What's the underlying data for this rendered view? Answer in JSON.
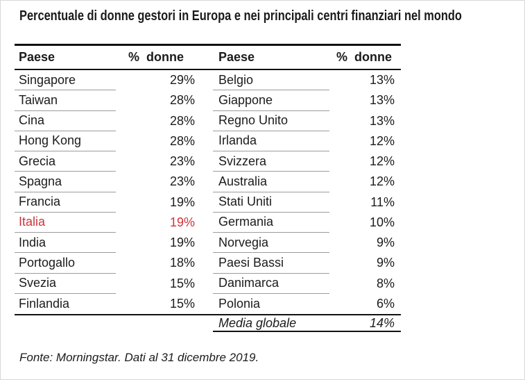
{
  "chart_data": {
    "type": "table",
    "title": "Percentuale di donne gestori in Europa e nei principali centri finanziari nel mondo",
    "columns": [
      "Paese",
      "% donne"
    ],
    "rows": [
      [
        "Singapore",
        29
      ],
      [
        "Taiwan",
        28
      ],
      [
        "Cina",
        28
      ],
      [
        "Hong Kong",
        28
      ],
      [
        "Grecia",
        23
      ],
      [
        "Spagna",
        23
      ],
      [
        "Francia",
        19
      ],
      [
        "Italia",
        19
      ],
      [
        "India",
        19
      ],
      [
        "Portogallo",
        18
      ],
      [
        "Svezia",
        15
      ],
      [
        "Finlandia",
        15
      ],
      [
        "Belgio",
        13
      ],
      [
        "Giappone",
        13
      ],
      [
        "Regno Unito",
        13
      ],
      [
        "Irlanda",
        12
      ],
      [
        "Svizzera",
        12
      ],
      [
        "Australia",
        12
      ],
      [
        "Stati Uniti",
        11
      ],
      [
        "Germania",
        10
      ],
      [
        "Norvegia",
        9
      ],
      [
        "Paesi Bassi",
        9
      ],
      [
        "Danimarca",
        8
      ],
      [
        "Polonia",
        6
      ]
    ],
    "summary_row": [
      "Media globale",
      14
    ],
    "highlighted_row": "Italia",
    "source": "Fonte: Morningstar. Dati al 31 dicembre 2019.",
    "layout": {
      "columns_split": 12,
      "value_suffix": "%",
      "legend": "none",
      "grid": "row-underlines"
    }
  },
  "style": {
    "highlight_color": "#cf3339",
    "rule_color": "#111111",
    "row_line_color": "#9b9b9b"
  }
}
